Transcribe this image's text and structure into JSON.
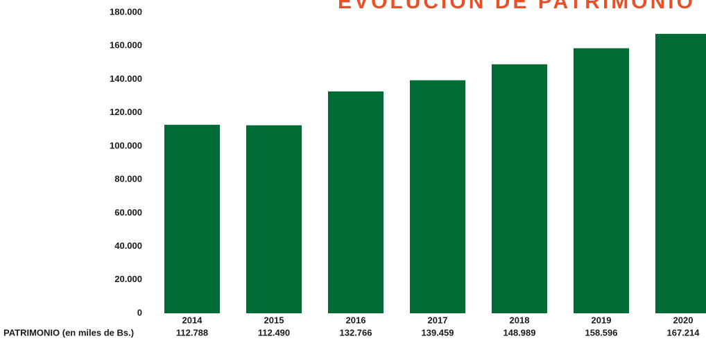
{
  "chart_data": {
    "type": "bar",
    "title": "EVOLUCIÓN DE PATRIMONIO",
    "row_label": "PATRIMONIO (en miles de Bs.)",
    "categories": [
      "2014",
      "2015",
      "2016",
      "2017",
      "2018",
      "2019",
      "2020"
    ],
    "values": [
      112788,
      112490,
      132766,
      139459,
      148989,
      158596,
      167214
    ],
    "value_labels": [
      "112.788",
      "112.490",
      "132.766",
      "139.459",
      "148.989",
      "158.596",
      "167.214"
    ],
    "color": "#006b35",
    "ylim": [
      0,
      180000
    ],
    "yticks": [
      0,
      {
        "value": 20000,
        "label": "20.000"
      },
      {
        "value": 40000,
        "label": "40.000"
      },
      {
        "value": 60000,
        "label": "60.000"
      },
      {
        "value": 80000,
        "label": "80.000"
      },
      {
        "value": 100000,
        "label": "100.000"
      },
      {
        "value": 120000,
        "label": "120.000"
      },
      {
        "value": 140000,
        "label": "140.000"
      },
      {
        "value": 160000,
        "label": "160.000"
      },
      {
        "value": 180000,
        "label": "180.000"
      }
    ],
    "grid": false
  }
}
